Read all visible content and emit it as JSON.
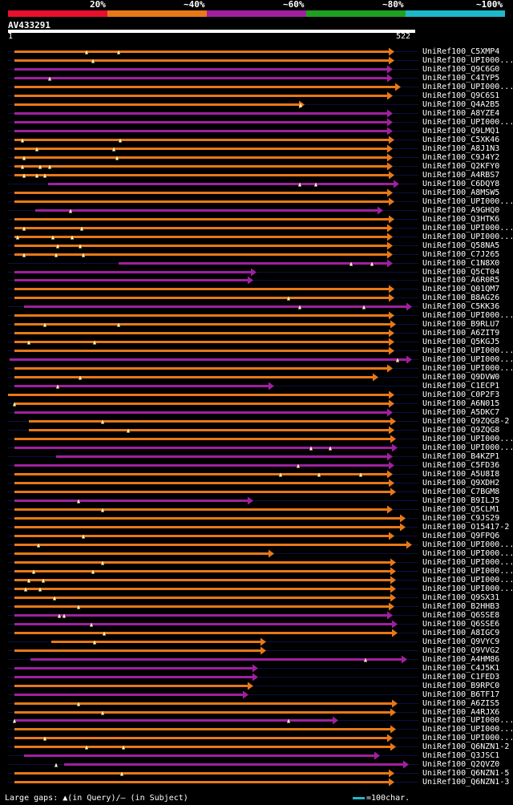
{
  "header": {
    "percent_labels": [
      "20%",
      "~40%",
      "~60%",
      "~80%",
      "~100%"
    ],
    "color_key": [
      "#e8102e",
      "#e87818",
      "#a020a0",
      "#20a020",
      "#1fb8c8"
    ],
    "query_id": "AV433291",
    "range_start": "1",
    "range_end": "522"
  },
  "colors": {
    "orange": "#e87818",
    "purple": "#a020a0"
  },
  "hits": [
    {
      "label": "UniRef100_C5XMP4",
      "color": "orange"
    },
    {
      "label": "UniRef100_UPI000...",
      "color": "orange"
    },
    {
      "label": "UniRef100_Q9C6G0",
      "color": "purple"
    },
    {
      "label": "UniRef100_C4IYP5",
      "color": "purple"
    },
    {
      "label": "UniRef100_UPI000...",
      "color": "orange"
    },
    {
      "label": "UniRef100_Q9C6S1",
      "color": "orange"
    },
    {
      "label": "UniRef100_Q4A2B5",
      "color": "orange"
    },
    {
      "label": "UniRef100_A8YZE4",
      "color": "purple"
    },
    {
      "label": "UniRef100_UPI000...",
      "color": "purple"
    },
    {
      "label": "UniRef100_Q9LMQ1",
      "color": "purple"
    },
    {
      "label": "UniRef100_C5XK46",
      "color": "orange"
    },
    {
      "label": "UniRef100_A8J1N3",
      "color": "orange"
    },
    {
      "label": "UniRef100_C9J4Y2",
      "color": "orange"
    },
    {
      "label": "UniRef100_Q2KFY0",
      "color": "orange"
    },
    {
      "label": "UniRef100_A4RBS7",
      "color": "orange"
    },
    {
      "label": "UniRef100_C6DQY8",
      "color": "purple"
    },
    {
      "label": "UniRef100_A8MSW5",
      "color": "orange"
    },
    {
      "label": "UniRef100_UPI000...",
      "color": "orange"
    },
    {
      "label": "UniRef100_A9GHQ0",
      "color": "purple"
    },
    {
      "label": "UniRef100_Q3HTK6",
      "color": "orange"
    },
    {
      "label": "UniRef100_UPI000...",
      "color": "orange"
    },
    {
      "label": "UniRef100_UPI000...",
      "color": "orange"
    },
    {
      "label": "UniRef100_Q58NA5",
      "color": "orange"
    },
    {
      "label": "UniRef100_C7J265",
      "color": "orange"
    },
    {
      "label": "UniRef100_C1N8X0",
      "color": "purple"
    },
    {
      "label": "UniRef100_Q5CT04",
      "color": "purple"
    },
    {
      "label": "UniRef100_A6R0R5",
      "color": "purple"
    },
    {
      "label": "UniRef100_Q01QM7",
      "color": "orange"
    },
    {
      "label": "UniRef100_B8AG26",
      "color": "orange"
    },
    {
      "label": "UniRef100_C5KK36",
      "color": "purple"
    },
    {
      "label": "UniRef100_UPI000...",
      "color": "orange"
    },
    {
      "label": "UniRef100_B9RLU7",
      "color": "orange"
    },
    {
      "label": "UniRef100_A6ZIT9",
      "color": "orange"
    },
    {
      "label": "UniRef100_Q5KGJ5",
      "color": "orange"
    },
    {
      "label": "UniRef100_UPI000...",
      "color": "orange"
    },
    {
      "label": "UniRef100_UPI000...",
      "color": "purple"
    },
    {
      "label": "UniRef100_UPI000...",
      "color": "orange"
    },
    {
      "label": "UniRef100_Q9DVW0",
      "color": "orange"
    },
    {
      "label": "UniRef100_C1ECP1",
      "color": "purple"
    },
    {
      "label": "UniRef100_C0P2F3",
      "color": "orange"
    },
    {
      "label": "UniRef100_A6N015",
      "color": "orange"
    },
    {
      "label": "UniRef100_A5DKC7",
      "color": "purple"
    },
    {
      "label": "UniRef100_Q9ZQG8-2",
      "color": "orange"
    },
    {
      "label": "UniRef100_Q9ZQG8",
      "color": "orange"
    },
    {
      "label": "UniRef100_UPI000...",
      "color": "orange"
    },
    {
      "label": "UniRef100_UPI000...",
      "color": "purple"
    },
    {
      "label": "UniRef100_B4KZP1",
      "color": "purple"
    },
    {
      "label": "UniRef100_C5FD36",
      "color": "purple"
    },
    {
      "label": "UniRef100_A5U8I8",
      "color": "orange"
    },
    {
      "label": "UniRef100_Q9XDH2",
      "color": "orange"
    },
    {
      "label": "UniRef100_C7BGM8",
      "color": "orange"
    },
    {
      "label": "UniRef100_B9ILJ5",
      "color": "purple"
    },
    {
      "label": "UniRef100_Q5CLM1",
      "color": "orange"
    },
    {
      "label": "UniRef100_C9JS29",
      "color": "orange"
    },
    {
      "label": "UniRef100_O15417-2",
      "color": "orange"
    },
    {
      "label": "UniRef100_Q9FPQ6",
      "color": "orange"
    },
    {
      "label": "UniRef100_UPI000...",
      "color": "orange"
    },
    {
      "label": "UniRef100_UPI000...",
      "color": "orange"
    },
    {
      "label": "UniRef100_UPI000...",
      "color": "orange"
    },
    {
      "label": "UniRef100_UPI000...",
      "color": "orange"
    },
    {
      "label": "UniRef100_UPI000...",
      "color": "orange"
    },
    {
      "label": "UniRef100_UPI000...",
      "color": "orange"
    },
    {
      "label": "UniRef100_Q9SX31",
      "color": "orange"
    },
    {
      "label": "UniRef100_B2HHB3",
      "color": "orange"
    },
    {
      "label": "UniRef100_Q6SSE8",
      "color": "purple"
    },
    {
      "label": "UniRef100_Q6SSE6",
      "color": "purple"
    },
    {
      "label": "UniRef100_A8IGC9",
      "color": "orange"
    },
    {
      "label": "UniRef100_Q9VYC9",
      "color": "orange"
    },
    {
      "label": "UniRef100_Q9VVG2",
      "color": "orange"
    },
    {
      "label": "UniRef100_A4HM86",
      "color": "purple"
    },
    {
      "label": "UniRef100_C4J5K1",
      "color": "purple"
    },
    {
      "label": "UniRef100_C1FED3",
      "color": "purple"
    },
    {
      "label": "UniRef100_B9RPC0",
      "color": "orange"
    },
    {
      "label": "UniRef100_B6TF17",
      "color": "purple"
    },
    {
      "label": "UniRef100_A6ZIS5",
      "color": "orange"
    },
    {
      "label": "UniRef100_A4RJX6",
      "color": "orange"
    },
    {
      "label": "UniRef100_UPI000...",
      "color": "purple"
    },
    {
      "label": "UniRef100_UPI000...",
      "color": "orange"
    },
    {
      "label": "UniRef100_UPI000...",
      "color": "orange"
    },
    {
      "label": "UniRef100_Q6NZN1-2",
      "color": "orange"
    },
    {
      "label": "UniRef100_Q3JSC1",
      "color": "purple"
    },
    {
      "label": "UniRef100_Q2QVZ0",
      "color": "purple"
    },
    {
      "label": "UniRef100_Q6NZN1-5",
      "color": "orange"
    },
    {
      "label": "UniRef100_Q6NZN1-3",
      "color": "orange"
    }
  ],
  "footer": {
    "gap_note": "Large gaps: ▲(in Query)/– (in Subject)",
    "scale_label": "=100char."
  }
}
